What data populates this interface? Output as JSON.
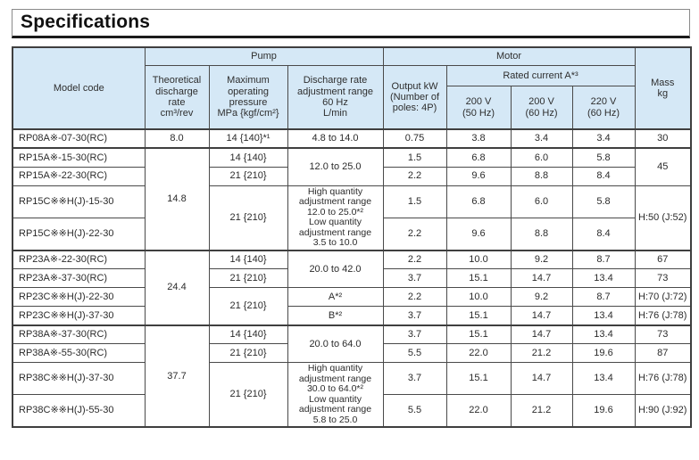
{
  "title": "Specifications",
  "colors": {
    "header_bg": "#d5e8f6",
    "border": "#4a4a4a",
    "title_underline": "#1b1b1b"
  },
  "header": {
    "model_code": "Model code",
    "pump_group": "Pump",
    "motor_group": "Motor",
    "mass": "Mass\nkg",
    "theoretical": "Theoretical\ndischarge\nrate\ncm³/rev",
    "max_pressure": "Maximum\noperating\npressure\nMPa {kgf/cm²}",
    "discharge_range": "Discharge rate\nadjustment range\n60 Hz\nL/min",
    "output_kw": "Output kW\n(Number of\npoles: 4P)",
    "rated_current": "Rated current A*³",
    "v200_50": "200 V\n(50 Hz)",
    "v200_60": "200 V\n(60 Hz)",
    "v220_60": "220 V\n(60 Hz)"
  },
  "rows": [
    {
      "model": "RP08A※-07-30(RC)",
      "discharge": "8.0",
      "pressure": "14 {140}*¹",
      "range": "4.8 to 14.0",
      "output": "0.75",
      "a50": "3.8",
      "a60": "3.4",
      "a220": "3.4",
      "mass": "30"
    },
    {
      "model": "RP15A※-15-30(RC)",
      "discharge": "14.8",
      "pressure": "14 {140}",
      "range": "12.0 to 25.0",
      "output": "1.5",
      "a50": "6.8",
      "a60": "6.0",
      "a220": "5.8",
      "mass": "45"
    },
    {
      "model": "RP15A※-22-30(RC)",
      "pressure": "21 {210}",
      "output": "2.2",
      "a50": "9.6",
      "a60": "8.8",
      "a220": "8.4"
    },
    {
      "model": "RP15C※※H(J)-15-30",
      "pressure": "21 {210}",
      "range": "High quantity\nadjustment range\n12.0 to 25.0*²\nLow quantity\nadjustment range\n3.5 to 10.0",
      "output": "1.5",
      "a50": "6.8",
      "a60": "6.0",
      "a220": "5.8",
      "mass": "H:50 (J:52)"
    },
    {
      "model": "RP15C※※H(J)-22-30",
      "output": "2.2",
      "a50": "9.6",
      "a60": "8.8",
      "a220": "8.4"
    },
    {
      "model": "RP23A※-22-30(RC)",
      "discharge": "24.4",
      "pressure": "14 {140}",
      "range": "20.0 to 42.0",
      "output": "2.2",
      "a50": "10.0",
      "a60": "9.2",
      "a220": "8.7",
      "mass": "67"
    },
    {
      "model": "RP23A※-37-30(RC)",
      "pressure": "21 {210}",
      "output": "3.7",
      "a50": "15.1",
      "a60": "14.7",
      "a220": "13.4",
      "mass": "73"
    },
    {
      "model": "RP23C※※H(J)-22-30",
      "pressure": "21 {210}",
      "range": "A*²",
      "output": "2.2",
      "a50": "10.0",
      "a60": "9.2",
      "a220": "8.7",
      "mass": "H:70 (J:72)"
    },
    {
      "model": "RP23C※※H(J)-37-30",
      "range": "B*²",
      "output": "3.7",
      "a50": "15.1",
      "a60": "14.7",
      "a220": "13.4",
      "mass": "H:76 (J:78)"
    },
    {
      "model": "RP38A※-37-30(RC)",
      "discharge": "37.7",
      "pressure": "14 {140}",
      "range": "20.0 to 64.0",
      "output": "3.7",
      "a50": "15.1",
      "a60": "14.7",
      "a220": "13.4",
      "mass": "73"
    },
    {
      "model": "RP38A※-55-30(RC)",
      "pressure": "21 {210}",
      "output": "5.5",
      "a50": "22.0",
      "a60": "21.2",
      "a220": "19.6",
      "mass": "87"
    },
    {
      "model": "RP38C※※H(J)-37-30",
      "pressure": "21 {210}",
      "range": "High quantity\nadjustment range\n30.0 to 64.0*²\nLow quantity\nadjustment range\n5.8 to 25.0",
      "output": "3.7",
      "a50": "15.1",
      "a60": "14.7",
      "a220": "13.4",
      "mass": "H:76 (J:78)"
    },
    {
      "model": "RP38C※※H(J)-55-30",
      "output": "5.5",
      "a50": "22.0",
      "a60": "21.2",
      "a220": "19.6",
      "mass": "H:90 (J:92)"
    }
  ]
}
